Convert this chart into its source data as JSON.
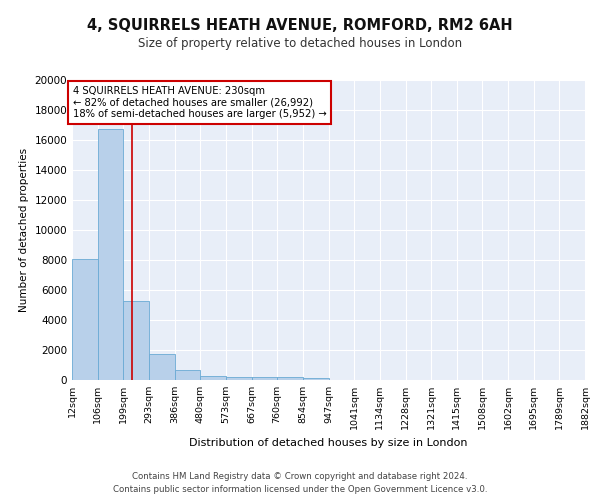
{
  "title": "4, SQUIRRELS HEATH AVENUE, ROMFORD, RM2 6AH",
  "subtitle": "Size of property relative to detached houses in London",
  "xlabel": "Distribution of detached houses by size in London",
  "ylabel": "Number of detached properties",
  "footer_line1": "Contains HM Land Registry data © Crown copyright and database right 2024.",
  "footer_line2": "Contains public sector information licensed under the Open Government Licence v3.0.",
  "bin_labels": [
    "12sqm",
    "106sqm",
    "199sqm",
    "293sqm",
    "386sqm",
    "480sqm",
    "573sqm",
    "667sqm",
    "760sqm",
    "854sqm",
    "947sqm",
    "1041sqm",
    "1134sqm",
    "1228sqm",
    "1321sqm",
    "1415sqm",
    "1508sqm",
    "1602sqm",
    "1695sqm",
    "1789sqm",
    "1882sqm"
  ],
  "bin_edges": [
    12,
    106,
    199,
    293,
    386,
    480,
    573,
    667,
    760,
    854,
    947,
    1041,
    1134,
    1228,
    1321,
    1415,
    1508,
    1602,
    1695,
    1789,
    1882
  ],
  "bar_heights": [
    8100,
    16700,
    5300,
    1750,
    700,
    300,
    230,
    200,
    190,
    130,
    0,
    0,
    0,
    0,
    0,
    0,
    0,
    0,
    0,
    0
  ],
  "bar_color": "#b8d0ea",
  "bar_edge_color": "#6aaad4",
  "bg_color": "#e8eef8",
  "grid_color": "#ffffff",
  "annotation_text": "4 SQUIRRELS HEATH AVENUE: 230sqm\n← 82% of detached houses are smaller (26,992)\n18% of semi-detached houses are larger (5,952) →",
  "annotation_box_color": "#ffffff",
  "annotation_box_edge": "#cc0000",
  "vline_x": 230,
  "vline_color": "#cc0000",
  "ylim": [
    0,
    20000
  ],
  "yticks": [
    0,
    2000,
    4000,
    6000,
    8000,
    10000,
    12000,
    14000,
    16000,
    18000,
    20000
  ]
}
